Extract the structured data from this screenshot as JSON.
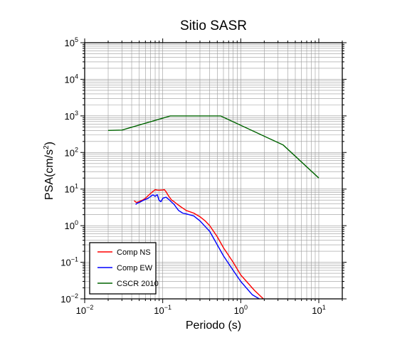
{
  "chart_data": {
    "type": "line",
    "title": "Sitio SASR",
    "xlabel": "Periodo (s)",
    "ylabel_base": "PSA(cm/s",
    "ylabel_sup": "2",
    "ylabel_tail": ")",
    "x_scale": "log",
    "y_scale": "log",
    "xlim": [
      0.01,
      20
    ],
    "ylim": [
      0.01,
      100000
    ],
    "grid": true,
    "legend_position": "bottom-left",
    "x_ticks": [
      {
        "base": "10",
        "exp": "−2",
        "value": 0.01
      },
      {
        "base": "10",
        "exp": "−1",
        "value": 0.1
      },
      {
        "base": "10",
        "exp": "0",
        "value": 1
      },
      {
        "base": "10",
        "exp": "1",
        "value": 10
      }
    ],
    "y_ticks": [
      {
        "base": "10",
        "exp": "−2",
        "value": 0.01
      },
      {
        "base": "10",
        "exp": "−1",
        "value": 0.1
      },
      {
        "base": "10",
        "exp": "0",
        "value": 1
      },
      {
        "base": "10",
        "exp": "1",
        "value": 10
      },
      {
        "base": "10",
        "exp": "2",
        "value": 100
      },
      {
        "base": "10",
        "exp": "3",
        "value": 1000
      },
      {
        "base": "10",
        "exp": "4",
        "value": 10000
      },
      {
        "base": "10",
        "exp": "5",
        "value": 100000
      }
    ],
    "series": [
      {
        "name": "Comp NS",
        "color": "#ff0000",
        "x": [
          0.043,
          0.046,
          0.05,
          0.055,
          0.06,
          0.065,
          0.07,
          0.075,
          0.08,
          0.085,
          0.09,
          0.095,
          0.1,
          0.105,
          0.11,
          0.12,
          0.13,
          0.14,
          0.15,
          0.17,
          0.2,
          0.25,
          0.3,
          0.35,
          0.4,
          0.5,
          0.6,
          0.8,
          1.0,
          1.5,
          2.0
        ],
        "y": [
          4.8,
          4.3,
          4.6,
          5.0,
          5.6,
          6.6,
          7.6,
          8.6,
          9.6,
          9.4,
          9.3,
          9.4,
          9.5,
          9.7,
          8.5,
          6.3,
          5.0,
          4.5,
          4.0,
          3.3,
          2.6,
          2.2,
          1.75,
          1.35,
          1.0,
          0.5,
          0.25,
          0.1,
          0.045,
          0.017,
          0.0095
        ]
      },
      {
        "name": "Comp EW",
        "color": "#0000ff",
        "x": [
          0.045,
          0.048,
          0.05,
          0.055,
          0.06,
          0.065,
          0.07,
          0.075,
          0.08,
          0.085,
          0.09,
          0.095,
          0.1,
          0.11,
          0.12,
          0.13,
          0.14,
          0.15,
          0.16,
          0.18,
          0.2,
          0.25,
          0.3,
          0.35,
          0.4,
          0.5,
          0.6,
          0.8,
          1.0,
          1.4,
          1.8
        ],
        "y": [
          3.8,
          4.2,
          4.3,
          4.8,
          5.2,
          5.6,
          6.3,
          7.0,
          6.3,
          7.1,
          4.9,
          4.5,
          5.6,
          6.0,
          5.2,
          4.4,
          3.8,
          3.1,
          2.6,
          2.2,
          2.1,
          1.85,
          1.35,
          0.95,
          0.7,
          0.3,
          0.15,
          0.06,
          0.03,
          0.013,
          0.0095
        ]
      },
      {
        "name": "CSCR 2010",
        "color": "#006400",
        "x": [
          0.02,
          0.03,
          0.125,
          0.55,
          3.5,
          10.0
        ],
        "y": [
          400,
          410,
          1000,
          1000,
          160,
          20
        ]
      }
    ]
  }
}
